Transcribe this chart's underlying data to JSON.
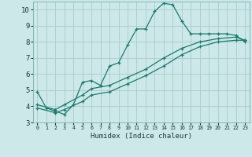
{
  "title": "",
  "xlabel": "Humidex (Indice chaleur)",
  "ylabel": "",
  "bg_color": "#cce8e8",
  "grid_color": "#aacccc",
  "line_color": "#1a7a6e",
  "xlim": [
    -0.5,
    23.5
  ],
  "ylim": [
    3,
    10.5
  ],
  "xticks": [
    0,
    1,
    2,
    3,
    4,
    5,
    6,
    7,
    8,
    9,
    10,
    11,
    12,
    13,
    14,
    15,
    16,
    17,
    18,
    19,
    20,
    21,
    22,
    23
  ],
  "yticks": [
    3,
    4,
    5,
    6,
    7,
    8,
    9,
    10
  ],
  "series1_x": [
    0,
    1,
    2,
    3,
    4,
    5,
    6,
    7,
    8,
    9,
    10,
    11,
    12,
    13,
    14,
    15,
    16,
    17,
    18,
    19,
    20,
    21,
    22,
    23
  ],
  "series1_y": [
    4.9,
    3.9,
    3.7,
    3.5,
    4.1,
    5.5,
    5.6,
    5.3,
    6.5,
    6.7,
    7.8,
    8.8,
    8.8,
    9.9,
    10.4,
    10.3,
    9.3,
    8.5,
    8.5,
    8.5,
    8.5,
    8.5,
    8.4,
    8.0
  ],
  "series2_x": [
    0,
    2,
    3,
    5,
    6,
    8,
    10,
    12,
    14,
    16,
    18,
    20,
    22,
    23
  ],
  "series2_y": [
    3.9,
    3.6,
    3.8,
    4.3,
    4.7,
    4.9,
    5.4,
    5.9,
    6.5,
    7.2,
    7.7,
    8.0,
    8.1,
    8.1
  ],
  "series3_x": [
    0,
    2,
    3,
    5,
    6,
    8,
    10,
    12,
    14,
    16,
    18,
    20,
    22,
    23
  ],
  "series3_y": [
    4.1,
    3.8,
    4.1,
    4.7,
    5.1,
    5.3,
    5.8,
    6.3,
    7.0,
    7.6,
    8.0,
    8.2,
    8.3,
    8.1
  ]
}
